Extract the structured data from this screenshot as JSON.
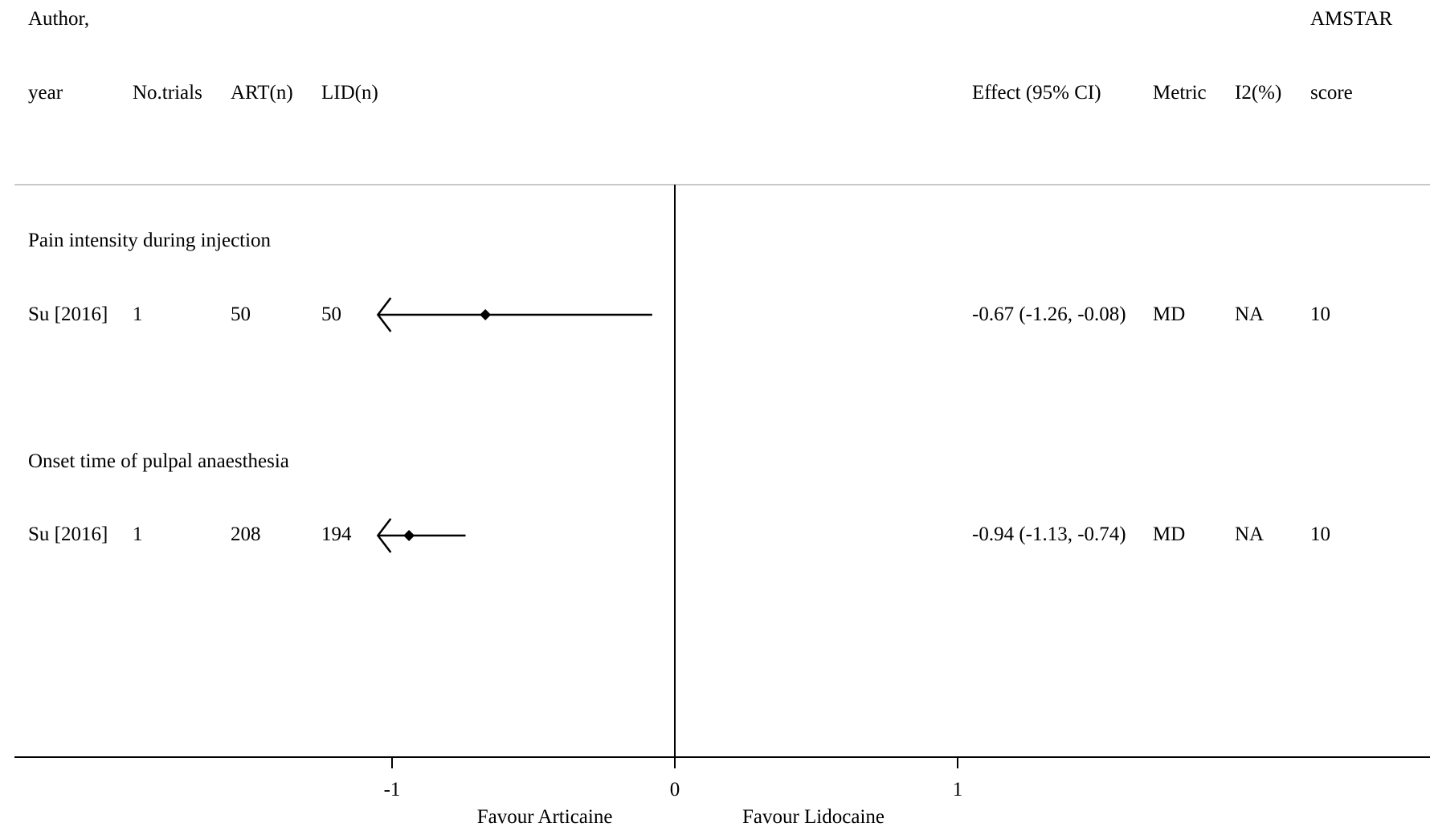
{
  "header": {
    "author_line1": "Author,",
    "author_line2": "year",
    "trials": "No.trials",
    "art": "ART(n)",
    "lid": "LID(n)",
    "effect": "Effect (95% CI)",
    "metric": "Metric",
    "i2": "I2(%)",
    "amstar_line1": "AMSTAR",
    "amstar_line2": "score"
  },
  "chart_data": {
    "type": "forest",
    "x_ticks": [
      -1,
      0,
      1
    ],
    "x_tick_labels": [
      "-1",
      "0",
      "1"
    ],
    "xlim": [
      -2.35,
      2.65
    ],
    "reference_line": 0,
    "favour_left": "Favour Articaine",
    "favour_right": "Favour Lidocaine",
    "groups": [
      {
        "title": "Pain intensity during injection",
        "rows": [
          {
            "author": "Su [2016]",
            "trials": "1",
            "art_n": "50",
            "lid_n": "50",
            "estimate": -0.67,
            "ci_low": -1.26,
            "ci_high": -0.08,
            "effect_text": "-0.67 (-1.26, -0.08)",
            "metric": "MD",
            "i2": "NA",
            "amstar": "10"
          }
        ]
      },
      {
        "title": "Onset time of pulpal anaesthesia",
        "rows": [
          {
            "author": "Su [2016]",
            "trials": "1",
            "art_n": "208",
            "lid_n": "194",
            "estimate": -0.94,
            "ci_low": -1.13,
            "ci_high": -0.74,
            "effect_text": "-0.94 (-1.13, -0.74)",
            "metric": "MD",
            "i2": "NA",
            "amstar": "10"
          }
        ]
      }
    ]
  }
}
